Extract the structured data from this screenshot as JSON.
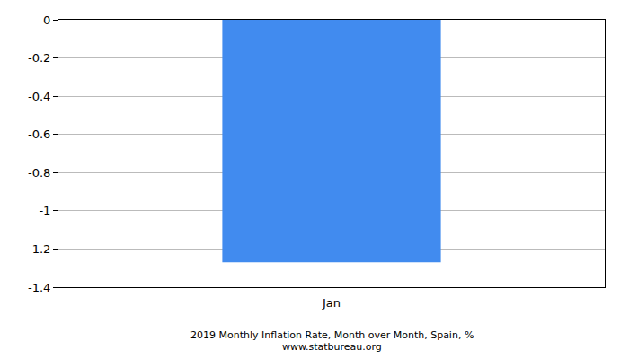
{
  "chart_data": {
    "type": "bar",
    "title": "2019 Monthly Inflation Rate, Month over Month, Spain, %",
    "subtitle": "www.statbureau.org",
    "categories": [
      "Jan"
    ],
    "values": [
      -1.27
    ],
    "color": "#418bef",
    "ylim": [
      -1.4,
      0
    ],
    "yticks": [
      -1.4,
      -1.2,
      -1,
      -0.8,
      -0.6,
      -0.4,
      -0.2,
      0
    ],
    "grid": true
  }
}
